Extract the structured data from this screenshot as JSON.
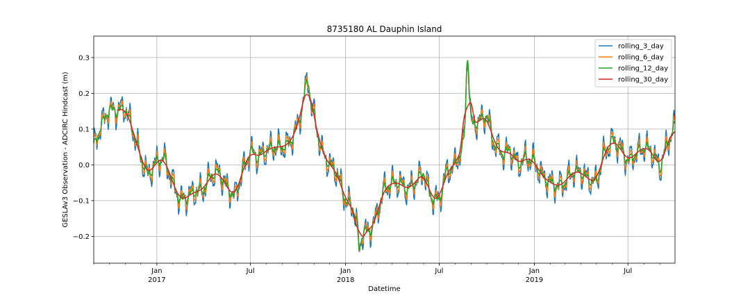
{
  "chart_data": {
    "type": "line",
    "title": "8735180 AL Dauphin Island",
    "xlabel": "Datetime",
    "ylabel": "GESLAv3 Observation - ADCIRC Hindcast (m)",
    "xlim": [
      "2016-09-01",
      "2019-09-30"
    ],
    "ylim": [
      -0.275,
      0.36
    ],
    "grid": true,
    "legend_position": "top-right",
    "y_ticks": [
      "0.3",
      "0.2",
      "0.1",
      "0.0",
      "−0.1",
      "−0.2"
    ],
    "y_tick_values": [
      0.3,
      0.2,
      0.1,
      0.0,
      -0.1,
      -0.2
    ],
    "x_ticks": [
      {
        "date": "2017-01-01",
        "label": "Jan",
        "sub": "2017"
      },
      {
        "date": "2017-07-01",
        "label": "Jul",
        "sub": ""
      },
      {
        "date": "2018-01-01",
        "label": "Jan",
        "sub": "2018"
      },
      {
        "date": "2018-07-01",
        "label": "Jul",
        "sub": ""
      },
      {
        "date": "2019-01-01",
        "label": "Jan",
        "sub": "2019"
      },
      {
        "date": "2019-07-01",
        "label": "Jul",
        "sub": ""
      }
    ],
    "series": [
      {
        "name": "rolling_3_day",
        "color": "#1f77b4",
        "noise": 0.03
      },
      {
        "name": "rolling_6_day",
        "color": "#ff7f0e",
        "noise": 0.02
      },
      {
        "name": "rolling_12_day",
        "color": "#2ca02c",
        "noise": 0.011
      },
      {
        "name": "rolling_30_day",
        "color": "#d62728",
        "noise": 0.0
      }
    ],
    "trend": {
      "x": [
        "2016-09-01",
        "2016-09-15",
        "2016-10-01",
        "2016-10-15",
        "2016-11-01",
        "2016-11-15",
        "2016-12-01",
        "2016-12-15",
        "2017-01-01",
        "2017-01-15",
        "2017-02-01",
        "2017-02-15",
        "2017-03-01",
        "2017-03-15",
        "2017-04-01",
        "2017-04-15",
        "2017-05-01",
        "2017-05-15",
        "2017-06-01",
        "2017-06-15",
        "2017-07-01",
        "2017-07-15",
        "2017-08-01",
        "2017-08-15",
        "2017-09-01",
        "2017-09-15",
        "2017-10-01",
        "2017-10-15",
        "2017-11-01",
        "2017-11-15",
        "2017-12-01",
        "2017-12-15",
        "2018-01-01",
        "2018-01-15",
        "2018-02-01",
        "2018-02-15",
        "2018-03-01",
        "2018-03-15",
        "2018-04-01",
        "2018-04-15",
        "2018-05-01",
        "2018-05-15",
        "2018-06-01",
        "2018-06-15",
        "2018-07-01",
        "2018-07-15",
        "2018-08-01",
        "2018-08-15",
        "2018-09-01",
        "2018-09-15",
        "2018-10-01",
        "2018-10-15",
        "2018-11-01",
        "2018-11-15",
        "2018-12-01",
        "2018-12-15",
        "2019-01-01",
        "2019-01-15",
        "2019-02-01",
        "2019-02-15",
        "2019-03-01",
        "2019-03-15",
        "2019-04-01",
        "2019-04-15",
        "2019-05-01",
        "2019-05-15",
        "2019-06-01",
        "2019-06-15",
        "2019-07-01",
        "2019-07-15",
        "2019-08-01",
        "2019-08-15",
        "2019-09-01",
        "2019-09-15",
        "2019-09-30"
      ],
      "y": [
        0.05,
        0.11,
        0.155,
        0.15,
        0.16,
        0.1,
        0.02,
        -0.03,
        0.01,
        0.02,
        -0.05,
        -0.1,
        -0.09,
        -0.075,
        -0.07,
        -0.03,
        -0.02,
        -0.06,
        -0.09,
        -0.02,
        0.04,
        0.02,
        0.04,
        0.05,
        0.05,
        0.06,
        0.11,
        0.2,
        0.14,
        0.04,
        0.0,
        -0.02,
        -0.1,
        -0.12,
        -0.18,
        -0.19,
        -0.15,
        -0.07,
        -0.05,
        -0.05,
        -0.07,
        -0.05,
        -0.02,
        -0.09,
        -0.1,
        -0.02,
        0.0,
        0.05,
        0.11,
        0.12,
        0.14,
        0.06,
        0.03,
        0.04,
        0.0,
        0.02,
        0.01,
        -0.03,
        -0.05,
        -0.06,
        -0.05,
        -0.02,
        -0.02,
        -0.04,
        -0.05,
        0.03,
        0.07,
        0.05,
        0.01,
        0.03,
        0.05,
        0.04,
        -0.01,
        0.06,
        0.11
      ]
    },
    "spikes": [
      {
        "x": "2017-10-20",
        "y": 0.245
      },
      {
        "x": "2018-08-25",
        "y": 0.33
      },
      {
        "x": "2018-01-28",
        "y": -0.245
      }
    ]
  }
}
